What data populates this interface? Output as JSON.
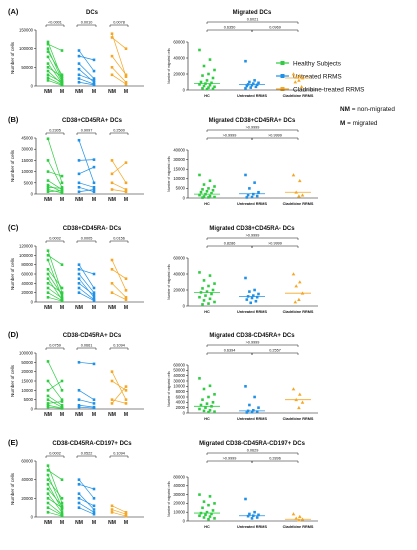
{
  "legend": {
    "items": [
      {
        "label": "Healthy Subjects",
        "color": "#2ecc40"
      },
      {
        "label": "Untreated RRMS",
        "color": "#1e90e8"
      },
      {
        "label": "Cladribine-treated RRMS",
        "color": "#f5a623"
      }
    ],
    "nm_key": "NM",
    "nm_text": " = non-migrated",
    "m_key": "M",
    "m_text": " = migrated"
  },
  "chart_data": [
    {
      "panel": "(A)",
      "side": "left",
      "type": "line",
      "title": "DCs",
      "ylabel": "Number of cells",
      "yticks": [
        "0",
        "50000",
        "100000",
        "150000"
      ],
      "ylim": [
        0,
        150000
      ],
      "categories": [
        "NM",
        "M",
        "NM",
        "M",
        "NM",
        "M"
      ],
      "pvalues": [
        "<0.0001",
        "0.0010",
        "0.0078"
      ],
      "series": [
        {
          "name": "Healthy Subjects",
          "pairs": [
            [
              118000,
              20000
            ],
            [
              112000,
              95000
            ],
            [
              100000,
              15000
            ],
            [
              92000,
              30000
            ],
            [
              78000,
              12000
            ],
            [
              60000,
              8000
            ],
            [
              50000,
              25000
            ],
            [
              40000,
              5000
            ],
            [
              30000,
              10000
            ],
            [
              22000,
              4000
            ],
            [
              15000,
              2000
            ]
          ]
        },
        {
          "name": "Untreated RRMS",
          "pairs": [
            [
              95000,
              40000
            ],
            [
              80000,
              70000
            ],
            [
              60000,
              20000
            ],
            [
              45000,
              10000
            ],
            [
              30000,
              15000
            ],
            [
              20000,
              5000
            ],
            [
              10000,
              3000
            ]
          ]
        },
        {
          "name": "Cladribine-treated RRMS",
          "pairs": [
            [
              140000,
              25000
            ],
            [
              130000,
              100000
            ],
            [
              80000,
              30000
            ],
            [
              50000,
              10000
            ],
            [
              30000,
              5000
            ]
          ]
        }
      ]
    },
    {
      "panel": "(A)",
      "side": "right",
      "type": "scatter",
      "title": "Migrated DCs",
      "ylabel": "Number of migrated cells",
      "yticks": [
        "0",
        "20000",
        "40000",
        "60000"
      ],
      "ylim": [
        0,
        60000
      ],
      "categories": [
        "HC",
        "Untreated RRMS",
        "Cladribine RRMS"
      ],
      "medians": [
        8000,
        7000,
        15000
      ],
      "comparisons": [
        {
          "from": 0,
          "to": 1,
          "p": "0.6350"
        },
        {
          "from": 1,
          "to": 2,
          "p": "0.0969"
        },
        {
          "from": 0,
          "to": 2,
          "p": "0.6021"
        }
      ],
      "values": [
        [
          50000,
          38000,
          30000,
          25000,
          20000,
          18000,
          15000,
          12000,
          10000,
          9000,
          8000,
          7000,
          6000,
          5000,
          4000,
          3000,
          2000,
          1500,
          1000
        ],
        [
          36000,
          12000,
          10000,
          9000,
          8000,
          7000,
          6500,
          6000,
          5000,
          4000,
          3000,
          2000
        ],
        [
          20000,
          18000,
          16000,
          15000,
          12000,
          10000,
          4000
        ]
      ]
    },
    {
      "panel": "(B)",
      "side": "left",
      "type": "line",
      "title": "CD38+CD45RA+ DCs",
      "ylabel": "Number of cells",
      "yticks": [
        "0",
        "5000",
        "10000",
        "15000",
        "30000",
        "45000"
      ],
      "ylim": [
        0,
        45000
      ],
      "categories": [
        "NM",
        "M",
        "NM",
        "M",
        "NM",
        "M"
      ],
      "pvalues": [
        "0.2305",
        "0.9097",
        "0.2500"
      ],
      "series": [
        {
          "name": "Healthy Subjects",
          "pairs": [
            [
              44000,
              5000
            ],
            [
              15000,
              3000
            ],
            [
              10000,
              8000
            ],
            [
              6000,
              2000
            ],
            [
              4000,
              1000
            ],
            [
              3000,
              2500
            ],
            [
              2000,
              500
            ],
            [
              1000,
              1500
            ]
          ]
        },
        {
          "name": "Untreated RRMS",
          "pairs": [
            [
              42000,
              5000
            ],
            [
              15000,
              16000
            ],
            [
              9000,
              12000
            ],
            [
              5000,
              3000
            ],
            [
              3000,
              1000
            ],
            [
              1000,
              2000
            ]
          ]
        },
        {
          "name": "Cladribine-treated RRMS",
          "pairs": [
            [
              15000,
              5000
            ],
            [
              9000,
              14000
            ],
            [
              5000,
              2000
            ],
            [
              2000,
              1000
            ]
          ]
        }
      ]
    },
    {
      "panel": "(B)",
      "side": "right",
      "type": "scatter",
      "title": "Migrated CD38+CD45RA+ DCs",
      "ylabel": "Number of migrated cells",
      "yticks": [
        "0",
        "5000",
        "10000",
        "15000",
        "30000",
        "40000"
      ],
      "ylim": [
        0,
        40000
      ],
      "categories": [
        "HC",
        "Untreated RRMS",
        "Cladribine RRMS"
      ],
      "medians": [
        2000,
        2200,
        3000
      ],
      "comparisons": [
        {
          "from": 0,
          "to": 1,
          "p": ">0.9999"
        },
        {
          "from": 1,
          "to": 2,
          "p": ">0.9999"
        },
        {
          "from": 0,
          "to": 2,
          "p": ">0.9999"
        }
      ],
      "values": [
        [
          12000,
          9000,
          7000,
          6000,
          5000,
          4500,
          4000,
          3500,
          3000,
          2500,
          2000,
          1500,
          1000,
          800,
          500,
          300,
          200
        ],
        [
          12000,
          8000,
          5000,
          3000,
          2000,
          1500,
          1000,
          500,
          300
        ],
        [
          12000,
          9000,
          3000,
          1500,
          1000
        ]
      ]
    },
    {
      "panel": "(C)",
      "side": "left",
      "type": "line",
      "title": "CD38+CD45RA- DCs",
      "ylabel": "Number of cells",
      "yticks": [
        "0",
        "20000",
        "40000",
        "60000",
        "80000",
        "100000",
        "120000"
      ],
      "ylim": [
        0,
        120000
      ],
      "categories": [
        "NM",
        "M",
        "NM",
        "M",
        "NM",
        "M"
      ],
      "pvalues": [
        "0.0002",
        "0.0005",
        "0.0156"
      ],
      "series": [
        {
          "name": "Healthy Subjects",
          "pairs": [
            [
              110000,
              20000
            ],
            [
              100000,
              80000
            ],
            [
              90000,
              10000
            ],
            [
              70000,
              30000
            ],
            [
              60000,
              15000
            ],
            [
              50000,
              5000
            ],
            [
              40000,
              20000
            ],
            [
              30000,
              8000
            ],
            [
              20000,
              3000
            ],
            [
              10000,
              2000
            ]
          ]
        },
        {
          "name": "Untreated RRMS",
          "pairs": [
            [
              80000,
              30000
            ],
            [
              70000,
              60000
            ],
            [
              60000,
              20000
            ],
            [
              50000,
              10000
            ],
            [
              40000,
              15000
            ],
            [
              30000,
              5000
            ],
            [
              20000,
              3000
            ]
          ]
        },
        {
          "name": "Cladribine-treated RRMS",
          "pairs": [
            [
              90000,
              25000
            ],
            [
              70000,
              50000
            ],
            [
              40000,
              10000
            ],
            [
              20000,
              5000
            ]
          ]
        }
      ]
    },
    {
      "panel": "(C)",
      "side": "right",
      "type": "scatter",
      "title": "Migrated CD38+CD45RA- DCs",
      "ylabel": "Number of migrated cells",
      "yticks": [
        "0",
        "20000",
        "40000",
        "60000"
      ],
      "ylim": [
        0,
        60000
      ],
      "categories": [
        "HC",
        "Untreated RRMS",
        "Cladribine RRMS"
      ],
      "medians": [
        17000,
        12000,
        16000
      ],
      "comparisons": [
        {
          "from": 0,
          "to": 1,
          "p": "0.8286"
        },
        {
          "from": 1,
          "to": 2,
          "p": ">0.9999"
        },
        {
          "from": 0,
          "to": 2,
          "p": ">0.9999"
        }
      ],
      "values": [
        [
          42000,
          38000,
          32000,
          28000,
          25000,
          22000,
          20000,
          18000,
          17000,
          15000,
          13000,
          11000,
          9000,
          7000,
          5000,
          3000,
          2000
        ],
        [
          35000,
          20000,
          18000,
          15000,
          13000,
          12000,
          11000,
          10000,
          8000,
          6000,
          4000
        ],
        [
          40000,
          30000,
          25000,
          16000,
          8000,
          5000
        ]
      ]
    },
    {
      "panel": "(D)",
      "side": "left",
      "type": "line",
      "title": "CD38-CD45RA+ DCs",
      "ylabel": "Number of cells",
      "yticks": [
        "0",
        "5000",
        "10000",
        "15000",
        "20000",
        "50000",
        "100000"
      ],
      "ylim": [
        0,
        100000
      ],
      "categories": [
        "NM",
        "M",
        "NM",
        "M",
        "NM",
        "M"
      ],
      "pvalues": [
        "0.0759",
        "0.0661",
        "0.1094"
      ],
      "series": [
        {
          "name": "Healthy Subjects",
          "pairs": [
            [
              55000,
              10000
            ],
            [
              15000,
              5000
            ],
            [
              10000,
              15000
            ],
            [
              7000,
              2000
            ],
            [
              5000,
              1000
            ],
            [
              3000,
              4000
            ],
            [
              2000,
              500
            ],
            [
              1000,
              300
            ]
          ]
        },
        {
          "name": "Untreated RRMS",
          "pairs": [
            [
              50000,
              45000
            ],
            [
              10000,
              5000
            ],
            [
              5000,
              3000
            ],
            [
              2000,
              1000
            ],
            [
              1000,
              500
            ]
          ]
        },
        {
          "name": "Cladribine-treated RRMS",
          "pairs": [
            [
              20000,
              5000
            ],
            [
              15000,
              10000
            ],
            [
              5000,
              3000
            ],
            [
              3000,
              12000
            ]
          ]
        }
      ]
    },
    {
      "panel": "(D)",
      "side": "right",
      "type": "scatter",
      "title": "Migrated CD38-CD45RA+ DCs",
      "ylabel": "Number of migrated cells",
      "yticks": [
        "0",
        "2000",
        "4000",
        "6000",
        "8000",
        "10000",
        "30000",
        "40000",
        "50000",
        "60000"
      ],
      "ylim": [
        0,
        60000
      ],
      "categories": [
        "HC",
        "Untreated RRMS",
        "Cladribine RRMS"
      ],
      "medians": [
        2500,
        800,
        5000
      ],
      "comparisons": [
        {
          "from": 0,
          "to": 1,
          "p": "0.6394"
        },
        {
          "from": 1,
          "to": 2,
          "p": "0.2557"
        },
        {
          "from": 0,
          "to": 2,
          "p": ">0.9999"
        }
      ],
      "values": [
        [
          35000,
          12000,
          9000,
          7000,
          6000,
          5000,
          4000,
          3500,
          3000,
          2500,
          2000,
          1500,
          1000,
          800,
          500,
          300
        ],
        [
          10000,
          6000,
          3000,
          2000,
          1000,
          800,
          500,
          300,
          200
        ],
        [
          9000,
          7000,
          5000,
          4000,
          2000
        ]
      ]
    },
    {
      "panel": "(E)",
      "side": "left",
      "type": "line",
      "title": "CD38-CD45RA-CD197+ DCs",
      "ylabel": "Number of cells",
      "yticks": [
        "0",
        "20000",
        "40000",
        "60000"
      ],
      "ylim": [
        0,
        60000
      ],
      "categories": [
        "NM",
        "M",
        "NM",
        "M",
        "NM",
        "M"
      ],
      "pvalues": [
        "0.0002",
        "0.0522",
        "0.1094"
      ],
      "series": [
        {
          "name": "Healthy Subjects",
          "pairs": [
            [
              55000,
              15000
            ],
            [
              50000,
              40000
            ],
            [
              45000,
              10000
            ],
            [
              40000,
              20000
            ],
            [
              35000,
              8000
            ],
            [
              30000,
              12000
            ],
            [
              25000,
              5000
            ],
            [
              20000,
              10000
            ],
            [
              15000,
              3000
            ],
            [
              10000,
              2000
            ],
            [
              5000,
              1000
            ]
          ]
        },
        {
          "name": "Untreated RRMS",
          "pairs": [
            [
              40000,
              20000
            ],
            [
              35000,
              30000
            ],
            [
              25000,
              8000
            ],
            [
              20000,
              12000
            ],
            [
              15000,
              5000
            ],
            [
              10000,
              3000
            ]
          ]
        },
        {
          "name": "Cladribine-treated RRMS",
          "pairs": [
            [
              12000,
              5000
            ],
            [
              8000,
              3000
            ],
            [
              5000,
              1000
            ]
          ]
        }
      ]
    },
    {
      "panel": "(E)",
      "side": "right",
      "type": "scatter",
      "title": "Migrated CD38-CD45RA-CD197+ DCs",
      "ylabel": "Number of migrated cells",
      "yticks": [
        "0",
        "10000",
        "20000",
        "30000",
        "40000",
        "80000"
      ],
      "ylim": [
        0,
        80000
      ],
      "categories": [
        "HC",
        "Untreated RRMS",
        "Cladribine RRMS"
      ],
      "medians": [
        9000,
        6000,
        2000
      ],
      "comparisons": [
        {
          "from": 0,
          "to": 1,
          "p": ">0.9999"
        },
        {
          "from": 1,
          "to": 2,
          "p": "0.2896"
        },
        {
          "from": 0,
          "to": 2,
          "p": "0.0629"
        }
      ],
      "values": [
        [
          30000,
          28000,
          22000,
          20000,
          18000,
          15000,
          12000,
          10000,
          9000,
          8000,
          7000,
          6000,
          5000,
          4000,
          3000,
          2000
        ],
        [
          25000,
          10000,
          8000,
          7000,
          6000,
          5500,
          4000,
          3000
        ],
        [
          8000,
          5000,
          3000,
          2000,
          1000
        ]
      ]
    }
  ]
}
